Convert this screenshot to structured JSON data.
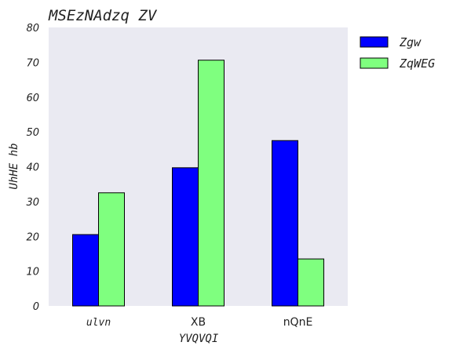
{
  "chart_data": {
    "type": "bar",
    "title": "MSEzNAdzq ZV",
    "xlabel": "YVQVQI",
    "ylabel": "UhHE hb",
    "categories": [
      "ulvn",
      "XB",
      "nQnE"
    ],
    "series": [
      {
        "name": "Zgw",
        "values": [
          20.5,
          39.7,
          47.5
        ],
        "color": "#0000ff"
      },
      {
        "name": "ZqWEG",
        "values": [
          32.5,
          70.6,
          13.5
        ],
        "color": "#7fff7f"
      }
    ],
    "ylim": [
      0,
      80
    ],
    "yticks": [
      "0",
      "10",
      "20",
      "30",
      "40",
      "50",
      "60",
      "70",
      "80"
    ],
    "grid": false,
    "legend_position": "outside-right-top",
    "plot_background": "#eaeaf2"
  }
}
